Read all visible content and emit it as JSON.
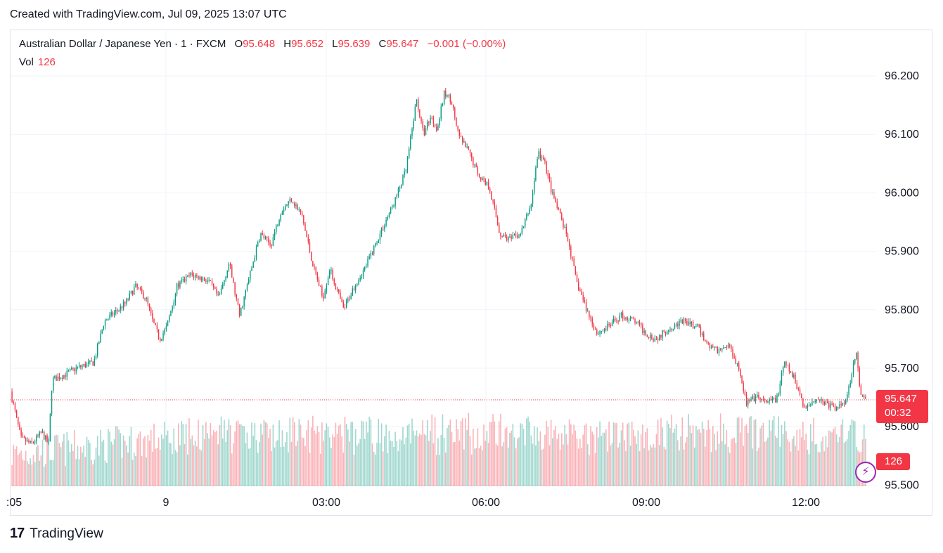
{
  "caption": "Created with TradingView.com, Jul 09, 2025 13:07 UTC",
  "legend": {
    "symbol": "Australian Dollar / Japanese Yen · 1 · FXCM",
    "o_label": "O",
    "o_value": "95.648",
    "h_label": "H",
    "h_value": "95.652",
    "l_label": "L",
    "l_value": "95.639",
    "c_label": "C",
    "c_value": "95.647",
    "change": "−0.001 (−0.00%)"
  },
  "volume": {
    "label": "Vol",
    "value": "126"
  },
  "badges": {
    "price": "95.647",
    "countdown": "00:32",
    "volume": "126"
  },
  "footer": {
    "brand": "TradingView",
    "mark": "17"
  },
  "colors": {
    "up": "#089981",
    "down": "#f23645",
    "grid": "#f0f3fa",
    "accent": "#9c27b0"
  },
  "icons": {
    "flash": "flash-icon"
  },
  "chart_data": {
    "type": "candlestick",
    "symbol": "AUDJPY",
    "interval": "1 minute",
    "y_axis_ticks": [
      "96.200",
      "96.100",
      "96.000",
      "95.900",
      "95.800",
      "95.700",
      "95.600",
      "95.500"
    ],
    "ylim": [
      95.5,
      96.22
    ],
    "x_axis_ticks": [
      ":05",
      "9",
      "03:00",
      "06:00",
      "09:00",
      "12:00"
    ],
    "last_price": 95.647,
    "grid": true,
    "close_path": [
      {
        "t": 0,
        "price": 95.66
      },
      {
        "t": 15,
        "price": 95.58
      },
      {
        "t": 30,
        "price": 95.57
      },
      {
        "t": 45,
        "price": 95.59
      },
      {
        "t": 55,
        "price": 95.57
      },
      {
        "t": 60,
        "price": 95.68
      },
      {
        "t": 80,
        "price": 95.69
      },
      {
        "t": 95,
        "price": 95.7
      },
      {
        "t": 120,
        "price": 95.71
      },
      {
        "t": 135,
        "price": 95.78
      },
      {
        "t": 165,
        "price": 95.81
      },
      {
        "t": 180,
        "price": 95.84
      },
      {
        "t": 195,
        "price": 95.82
      },
      {
        "t": 205,
        "price": 95.78
      },
      {
        "t": 215,
        "price": 95.75
      },
      {
        "t": 225,
        "price": 95.77
      },
      {
        "t": 240,
        "price": 95.84
      },
      {
        "t": 260,
        "price": 95.86
      },
      {
        "t": 285,
        "price": 95.85
      },
      {
        "t": 300,
        "price": 95.82
      },
      {
        "t": 315,
        "price": 95.88
      },
      {
        "t": 330,
        "price": 95.79
      },
      {
        "t": 345,
        "price": 95.86
      },
      {
        "t": 360,
        "price": 95.93
      },
      {
        "t": 375,
        "price": 95.91
      },
      {
        "t": 390,
        "price": 95.97
      },
      {
        "t": 405,
        "price": 95.99
      },
      {
        "t": 420,
        "price": 95.96
      },
      {
        "t": 435,
        "price": 95.88
      },
      {
        "t": 450,
        "price": 95.82
      },
      {
        "t": 460,
        "price": 95.87
      },
      {
        "t": 480,
        "price": 95.8
      },
      {
        "t": 495,
        "price": 95.84
      },
      {
        "t": 510,
        "price": 95.87
      },
      {
        "t": 525,
        "price": 95.91
      },
      {
        "t": 540,
        "price": 95.95
      },
      {
        "t": 555,
        "price": 95.99
      },
      {
        "t": 570,
        "price": 96.04
      },
      {
        "t": 585,
        "price": 96.16
      },
      {
        "t": 595,
        "price": 96.1
      },
      {
        "t": 605,
        "price": 96.13
      },
      {
        "t": 615,
        "price": 96.11
      },
      {
        "t": 625,
        "price": 96.17
      },
      {
        "t": 635,
        "price": 96.16
      },
      {
        "t": 645,
        "price": 96.1
      },
      {
        "t": 660,
        "price": 96.07
      },
      {
        "t": 675,
        "price": 96.03
      },
      {
        "t": 690,
        "price": 96.01
      },
      {
        "t": 705,
        "price": 95.93
      },
      {
        "t": 720,
        "price": 95.92
      },
      {
        "t": 735,
        "price": 95.93
      },
      {
        "t": 750,
        "price": 95.98
      },
      {
        "t": 760,
        "price": 96.07
      },
      {
        "t": 770,
        "price": 96.05
      },
      {
        "t": 780,
        "price": 96.0
      },
      {
        "t": 795,
        "price": 95.95
      },
      {
        "t": 805,
        "price": 95.91
      },
      {
        "t": 815,
        "price": 95.85
      },
      {
        "t": 830,
        "price": 95.8
      },
      {
        "t": 845,
        "price": 95.76
      },
      {
        "t": 860,
        "price": 95.77
      },
      {
        "t": 880,
        "price": 95.79
      },
      {
        "t": 900,
        "price": 95.78
      },
      {
        "t": 915,
        "price": 95.76
      },
      {
        "t": 930,
        "price": 95.75
      },
      {
        "t": 950,
        "price": 95.77
      },
      {
        "t": 970,
        "price": 95.78
      },
      {
        "t": 990,
        "price": 95.77
      },
      {
        "t": 1005,
        "price": 95.74
      },
      {
        "t": 1020,
        "price": 95.73
      },
      {
        "t": 1035,
        "price": 95.74
      },
      {
        "t": 1050,
        "price": 95.7
      },
      {
        "t": 1060,
        "price": 95.64
      },
      {
        "t": 1075,
        "price": 95.65
      },
      {
        "t": 1090,
        "price": 95.64
      },
      {
        "t": 1105,
        "price": 95.65
      },
      {
        "t": 1115,
        "price": 95.71
      },
      {
        "t": 1130,
        "price": 95.68
      },
      {
        "t": 1145,
        "price": 95.63
      },
      {
        "t": 1160,
        "price": 95.65
      },
      {
        "t": 1175,
        "price": 95.64
      },
      {
        "t": 1190,
        "price": 95.63
      },
      {
        "t": 1205,
        "price": 95.65
      },
      {
        "t": 1218,
        "price": 95.73
      },
      {
        "t": 1225,
        "price": 95.65
      },
      {
        "t": 1232,
        "price": 95.647
      }
    ]
  }
}
